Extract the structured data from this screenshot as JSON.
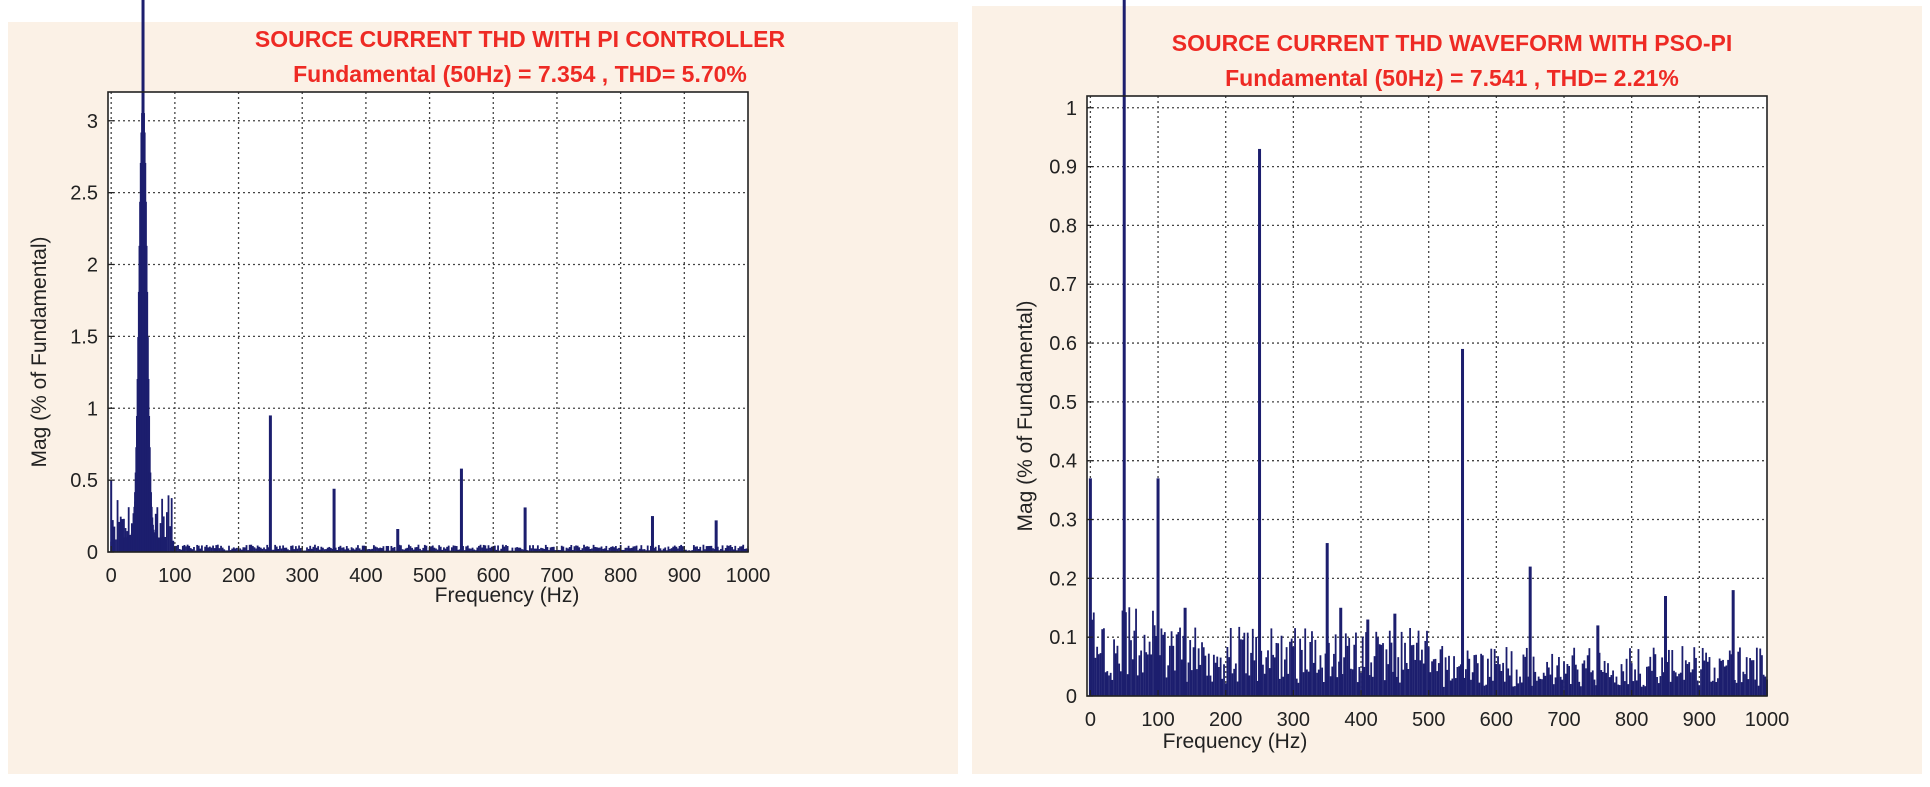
{
  "chart_data": [
    {
      "type": "bar",
      "title": "SOURCE CURRENT THD WITH PI CONTROLLER",
      "subtitle": "Fundamental (50Hz) = 7.354 , THD= 5.70%",
      "xlabel": "Frequency (Hz)",
      "ylabel": "Mag (% of Fundamental)",
      "xlim": [
        -5,
        1000
      ],
      "ylim": [
        0,
        3.2
      ],
      "xticks": [
        0,
        100,
        200,
        300,
        400,
        500,
        600,
        700,
        800,
        900,
        1000
      ],
      "yticks": [
        0,
        0.5,
        1,
        1.5,
        2,
        2.5,
        3
      ],
      "ytick_labels": [
        "0",
        "0.5",
        "1",
        "1.5",
        "2",
        "2.5",
        "3"
      ],
      "grid": true,
      "color": "#1c1e6e",
      "harmonics": [
        {
          "x": 250,
          "y": 0.95
        },
        {
          "x": 350,
          "y": 0.44
        },
        {
          "x": 450,
          "y": 0.16
        },
        {
          "x": 550,
          "y": 0.58
        },
        {
          "x": 650,
          "y": 0.31
        },
        {
          "x": 850,
          "y": 0.25
        },
        {
          "x": 950,
          "y": 0.22
        }
      ],
      "fundamental": {
        "x": 50,
        "y": 3.0
      },
      "noise_level": 0.03
    },
    {
      "type": "bar",
      "title": "SOURCE CURRENT THD WAVEFORM WITH PSO-PI",
      "subtitle": "Fundamental (50Hz) = 7.541 , THD= 2.21%",
      "xlabel": "Frequency (Hz)",
      "ylabel": "Mag (% of Fundamental)",
      "xlim": [
        -5,
        1000
      ],
      "ylim": [
        0,
        1.02
      ],
      "xticks": [
        0,
        100,
        200,
        300,
        400,
        500,
        600,
        700,
        800,
        900,
        1000
      ],
      "yticks": [
        0,
        0.1,
        0.2,
        0.3,
        0.4,
        0.5,
        0.6,
        0.7,
        0.8,
        0.9,
        1
      ],
      "ytick_labels": [
        "0",
        "0.1",
        "0.2",
        "0.3",
        "0.4",
        "0.5",
        "0.6",
        "0.7",
        "0.8",
        "0.9",
        "1"
      ],
      "grid": true,
      "color": "#1c1e6e",
      "harmonics": [
        {
          "x": 0,
          "y": 0.37
        },
        {
          "x": 100,
          "y": 0.37
        },
        {
          "x": 140,
          "y": 0.15
        },
        {
          "x": 250,
          "y": 0.93
        },
        {
          "x": 350,
          "y": 0.26
        },
        {
          "x": 370,
          "y": 0.15
        },
        {
          "x": 410,
          "y": 0.13
        },
        {
          "x": 450,
          "y": 0.14
        },
        {
          "x": 550,
          "y": 0.59
        },
        {
          "x": 650,
          "y": 0.22
        },
        {
          "x": 750,
          "y": 0.12
        },
        {
          "x": 850,
          "y": 0.17
        },
        {
          "x": 950,
          "y": 0.18
        }
      ],
      "fundamental": {
        "x": 50,
        "y": 1.0
      },
      "noise_level": 0.05
    }
  ]
}
